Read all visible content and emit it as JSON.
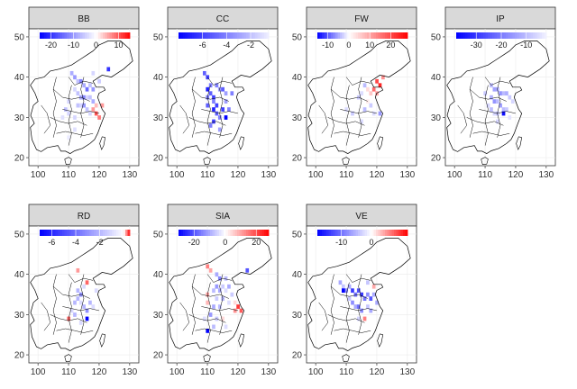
{
  "chart_data": {
    "type": "heatmap",
    "layout": "facet-grid",
    "panels": [
      {
        "title": "BB",
        "legend": {
          "ticks": [
            -20,
            -10,
            0,
            10
          ],
          "min": -25,
          "max": 15
        },
        "cells": [
          [
            111,
            41,
            -8
          ],
          [
            112,
            40,
            -10
          ],
          [
            113,
            39,
            -6
          ],
          [
            114,
            39,
            -12
          ],
          [
            115,
            38,
            -8
          ],
          [
            116,
            37,
            -14
          ],
          [
            117,
            38,
            -6
          ],
          [
            118,
            37,
            -10
          ],
          [
            112,
            37,
            -4
          ],
          [
            113,
            36,
            -6
          ],
          [
            114,
            35,
            -8
          ],
          [
            115,
            35,
            -12
          ],
          [
            116,
            35,
            -4
          ],
          [
            117,
            35,
            -6
          ],
          [
            118,
            34,
            -8
          ],
          [
            113,
            33,
            -6
          ],
          [
            114,
            33,
            -4
          ],
          [
            115,
            33,
            -10
          ],
          [
            116,
            32,
            -6
          ],
          [
            117,
            31,
            -4
          ],
          [
            118,
            32,
            6
          ],
          [
            119,
            31,
            10
          ],
          [
            120,
            30,
            8
          ],
          [
            119,
            33,
            4
          ],
          [
            121,
            33,
            6
          ],
          [
            110,
            34,
            -4
          ],
          [
            109,
            32,
            -6
          ],
          [
            110,
            31,
            -4
          ],
          [
            108,
            30,
            -3
          ],
          [
            112,
            30,
            -4
          ],
          [
            112,
            27,
            -3
          ],
          [
            110,
            25,
            -2
          ],
          [
            123,
            42,
            -20
          ],
          [
            120,
            39,
            -5
          ],
          [
            118,
            41,
            -4
          ]
        ]
      },
      {
        "title": "CC",
        "legend": {
          "ticks": [
            -6,
            -4,
            -2
          ],
          "min": -8,
          "max": -0.5
        },
        "cells": [
          [
            109,
            41,
            -5
          ],
          [
            110,
            40,
            -6
          ],
          [
            111,
            38,
            -4
          ],
          [
            110,
            37,
            -7
          ],
          [
            111,
            36,
            -5
          ],
          [
            112,
            35,
            -6
          ],
          [
            112,
            34,
            -4
          ],
          [
            113,
            33,
            -6
          ],
          [
            112,
            32,
            -7
          ],
          [
            113,
            31,
            -5
          ],
          [
            114,
            30,
            -4
          ],
          [
            115,
            32,
            -6
          ],
          [
            116,
            30,
            -8
          ],
          [
            117,
            32,
            -4
          ],
          [
            113,
            38,
            -4
          ],
          [
            114,
            37,
            -3
          ],
          [
            115,
            37,
            -5
          ],
          [
            116,
            36,
            -3
          ],
          [
            118,
            36,
            -4
          ],
          [
            116,
            34,
            -3
          ],
          [
            112,
            29,
            -6
          ],
          [
            111,
            28,
            -4
          ],
          [
            114,
            27,
            -3
          ],
          [
            110,
            33,
            -5
          ],
          [
            110,
            35,
            -4
          ]
        ]
      },
      {
        "title": "FW",
        "legend": {
          "ticks": [
            -10,
            0,
            10,
            20
          ],
          "min": -15,
          "max": 28
        },
        "cells": [
          [
            120,
            39,
            20
          ],
          [
            121,
            38,
            24
          ],
          [
            119,
            37,
            16
          ],
          [
            120,
            36,
            10
          ],
          [
            118,
            36,
            6
          ],
          [
            117,
            37,
            4
          ],
          [
            116,
            38,
            -4
          ],
          [
            115,
            36,
            -2
          ],
          [
            114,
            35,
            -3
          ],
          [
            117,
            34,
            2
          ],
          [
            118,
            33,
            -3
          ],
          [
            116,
            32,
            -4
          ],
          [
            119,
            31,
            -2
          ],
          [
            121,
            31,
            -6
          ],
          [
            112,
            31,
            -3
          ],
          [
            115,
            29,
            -2
          ],
          [
            110,
            32,
            -2
          ],
          [
            122,
            40,
            12
          ]
        ]
      },
      {
        "title": "IP",
        "legend": {
          "ticks": [
            -30,
            -20,
            -10
          ],
          "min": -38,
          "max": -2
        },
        "cells": [
          [
            112,
            38,
            -10
          ],
          [
            113,
            37,
            -14
          ],
          [
            114,
            37,
            -12
          ],
          [
            115,
            36,
            -16
          ],
          [
            116,
            36,
            -10
          ],
          [
            117,
            36,
            -12
          ],
          [
            118,
            35,
            -8
          ],
          [
            112,
            35,
            -12
          ],
          [
            113,
            34,
            -16
          ],
          [
            114,
            34,
            -10
          ],
          [
            115,
            33,
            -14
          ],
          [
            116,
            32,
            -10
          ],
          [
            117,
            32,
            -8
          ],
          [
            116,
            31,
            -36
          ],
          [
            114,
            31,
            -8
          ],
          [
            113,
            31,
            -6
          ],
          [
            112,
            32,
            -10
          ],
          [
            110,
            36,
            -8
          ],
          [
            111,
            33,
            -6
          ],
          [
            119,
            34,
            -6
          ],
          [
            118,
            30,
            -4
          ],
          [
            114,
            29,
            -6
          ]
        ]
      },
      {
        "title": "RD",
        "legend": {
          "ticks": [
            -6,
            -4,
            -2
          ],
          "min": -7,
          "max": 0.5
        },
        "cells": [
          [
            113,
            36,
            -2
          ],
          [
            114,
            35,
            -3
          ],
          [
            113,
            34,
            -2
          ],
          [
            112,
            33,
            -2
          ],
          [
            114,
            33,
            -1
          ],
          [
            115,
            32,
            -2
          ],
          [
            116,
            31,
            -3
          ],
          [
            116,
            29,
            -7
          ],
          [
            117,
            33,
            -2
          ],
          [
            118,
            32,
            -1
          ],
          [
            115,
            37,
            -1
          ],
          [
            116,
            38,
            0.3
          ],
          [
            111,
            31,
            -1
          ],
          [
            112,
            30,
            -2
          ],
          [
            110,
            29,
            0.3
          ],
          [
            114,
            28,
            -1
          ],
          [
            113,
            41,
            0.2
          ],
          [
            119,
            36,
            -1
          ]
        ]
      },
      {
        "title": "SIA",
        "legend": {
          "ticks": [
            -20,
            0,
            20
          ],
          "min": -30,
          "max": 28
        },
        "cells": [
          [
            110,
            42,
            14
          ],
          [
            111,
            41,
            10
          ],
          [
            113,
            40,
            -10
          ],
          [
            114,
            39,
            -14
          ],
          [
            116,
            39,
            -8
          ],
          [
            117,
            37,
            -10
          ],
          [
            115,
            37,
            -6
          ],
          [
            113,
            37,
            -12
          ],
          [
            112,
            36,
            -8
          ],
          [
            114,
            36,
            -10
          ],
          [
            116,
            36,
            -4
          ],
          [
            118,
            35,
            -6
          ],
          [
            113,
            34,
            -6
          ],
          [
            115,
            34,
            -8
          ],
          [
            117,
            33,
            -4
          ],
          [
            119,
            33,
            4
          ],
          [
            120,
            32,
            22
          ],
          [
            121,
            31,
            18
          ],
          [
            119,
            31,
            12
          ],
          [
            112,
            32,
            -10
          ],
          [
            114,
            32,
            -8
          ],
          [
            110,
            35,
            10
          ],
          [
            110,
            33,
            8
          ],
          [
            111,
            30,
            -12
          ],
          [
            113,
            29,
            -6
          ],
          [
            115,
            29,
            4
          ],
          [
            112,
            27,
            -8
          ],
          [
            110,
            26,
            -30
          ],
          [
            109,
            29,
            -4
          ],
          [
            116,
            27,
            -4
          ],
          [
            123,
            41,
            -20
          ]
        ]
      },
      {
        "title": "VE",
        "legend": {
          "ticks": [
            -10,
            0
          ],
          "min": -18,
          "max": 12
        },
        "cells": [
          [
            108,
            38,
            -6
          ],
          [
            109,
            37,
            -4
          ],
          [
            110,
            36,
            -8
          ],
          [
            111,
            37,
            -6
          ],
          [
            112,
            36,
            -14
          ],
          [
            113,
            35,
            -10
          ],
          [
            114,
            36,
            -12
          ],
          [
            115,
            35,
            -14
          ],
          [
            116,
            34,
            -10
          ],
          [
            117,
            35,
            -8
          ],
          [
            118,
            34,
            -12
          ],
          [
            119,
            35,
            -6
          ],
          [
            112,
            33,
            -8
          ],
          [
            113,
            32,
            -6
          ],
          [
            114,
            32,
            -10
          ],
          [
            115,
            31,
            -8
          ],
          [
            117,
            32,
            -4
          ],
          [
            109,
            36,
            -18
          ],
          [
            118,
            31,
            -6
          ],
          [
            114,
            29,
            -3
          ],
          [
            116,
            29,
            6
          ],
          [
            120,
            33,
            -6
          ],
          [
            111,
            34,
            -4
          ],
          [
            117,
            38,
            -4
          ],
          [
            119,
            37,
            4
          ]
        ]
      }
    ],
    "x_axis": {
      "ticks": [
        100,
        110,
        120,
        130
      ],
      "range": [
        97,
        133
      ]
    },
    "y_axis": {
      "ticks": [
        20,
        30,
        40,
        50
      ],
      "range": [
        18,
        52
      ]
    },
    "colors": {
      "low": "#0000ff",
      "mid": "#ffffff",
      "high": "#ff0000",
      "strip": "#d9d9d9",
      "border": "#333333"
    }
  }
}
